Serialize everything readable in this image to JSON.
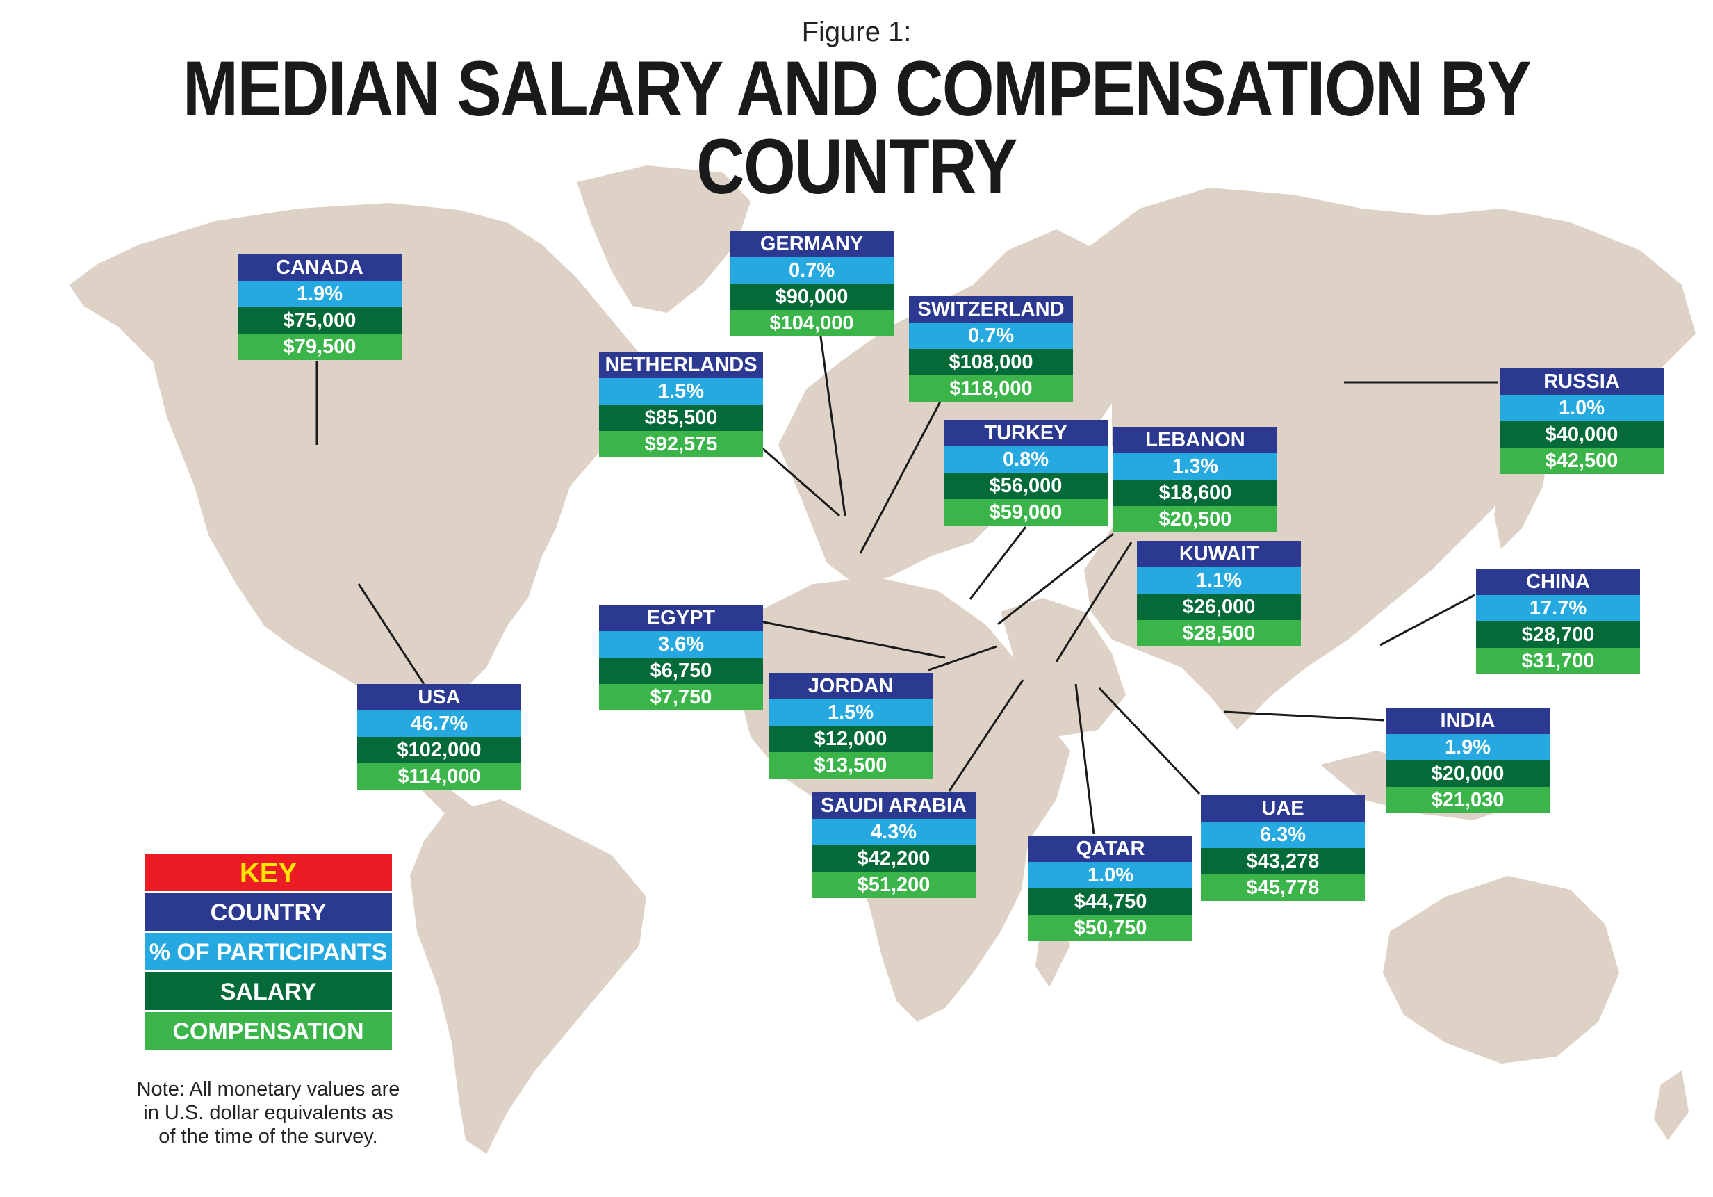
{
  "header": {
    "figure_label": "Figure 1:",
    "title": "MEDIAN SALARY AND COMPENSATION BY COUNTRY"
  },
  "colors": {
    "land": "#ddd2c5",
    "leader_line": "#1a1a1a",
    "country_row": "#2b3990",
    "percent_row": "#25a9e0",
    "salary_row": "#046a38",
    "compensation_row": "#3bb54a",
    "key_title_bg": "#ec1c24",
    "key_title_text": "#ffe600"
  },
  "countries": [
    {
      "id": "canada",
      "name": "CANADA",
      "percent": "1.9%",
      "salary": "$75,000",
      "compensation": "$79,500"
    },
    {
      "id": "germany",
      "name": "GERMANY",
      "percent": "0.7%",
      "salary": "$90,000",
      "compensation": "$104,000"
    },
    {
      "id": "switzerland",
      "name": "SWITZERLAND",
      "percent": "0.7%",
      "salary": "$108,000",
      "compensation": "$118,000"
    },
    {
      "id": "netherlands",
      "name": "NETHERLANDS",
      "percent": "1.5%",
      "salary": "$85,500",
      "compensation": "$92,575"
    },
    {
      "id": "turkey",
      "name": "TURKEY",
      "percent": "0.8%",
      "salary": "$56,000",
      "compensation": "$59,000"
    },
    {
      "id": "lebanon",
      "name": "LEBANON",
      "percent": "1.3%",
      "salary": "$18,600",
      "compensation": "$20,500"
    },
    {
      "id": "russia",
      "name": "RUSSIA",
      "percent": "1.0%",
      "salary": "$40,000",
      "compensation": "$42,500"
    },
    {
      "id": "kuwait",
      "name": "KUWAIT",
      "percent": "1.1%",
      "salary": "$26,000",
      "compensation": "$28,500"
    },
    {
      "id": "china",
      "name": "CHINA",
      "percent": "17.7%",
      "salary": "$28,700",
      "compensation": "$31,700"
    },
    {
      "id": "egypt",
      "name": "EGYPT",
      "percent": "3.6%",
      "salary": "$6,750",
      "compensation": "$7,750"
    },
    {
      "id": "jordan",
      "name": "JORDAN",
      "percent": "1.5%",
      "salary": "$12,000",
      "compensation": "$13,500"
    },
    {
      "id": "usa",
      "name": "USA",
      "percent": "46.7%",
      "salary": "$102,000",
      "compensation": "$114,000"
    },
    {
      "id": "india",
      "name": "INDIA",
      "percent": "1.9%",
      "salary": "$20,000",
      "compensation": "$21,030"
    },
    {
      "id": "saudi_arabia",
      "name": "SAUDI ARABIA",
      "percent": "4.3%",
      "salary": "$42,200",
      "compensation": "$51,200"
    },
    {
      "id": "uae",
      "name": "UAE",
      "percent": "6.3%",
      "salary": "$43,278",
      "compensation": "$45,778"
    },
    {
      "id": "qatar",
      "name": "QATAR",
      "percent": "1.0%",
      "salary": "$44,750",
      "compensation": "$50,750"
    }
  ],
  "key": {
    "title": "KEY",
    "country": "COUNTRY",
    "percent": "% OF PARTICIPANTS",
    "salary": "SALARY",
    "compensation": "COMPENSATION"
  },
  "note": "Note: All monetary values are in U.S. dollar equivalents as of the time of the survey."
}
